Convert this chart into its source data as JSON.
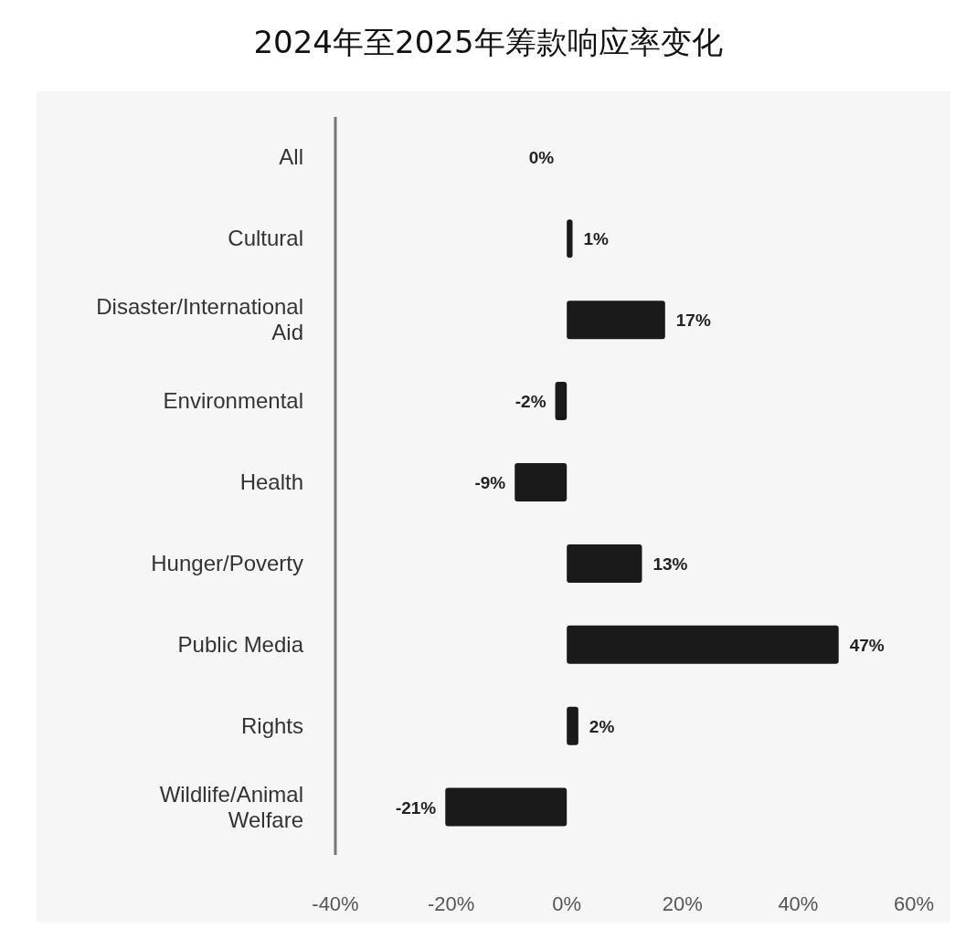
{
  "chart_data": {
    "type": "bar",
    "orientation": "horizontal",
    "title": "2024年至2025年筹款响应率变化",
    "categories": [
      "All",
      "Cultural",
      "Disaster/International Aid",
      "Environmental",
      "Health",
      "Hunger/Poverty",
      "Public Media",
      "Rights",
      "Wildlife/Animal Welfare"
    ],
    "values": [
      0,
      1,
      17,
      -2,
      -9,
      13,
      47,
      2,
      -21
    ],
    "value_labels": [
      "0%",
      "1%",
      "17%",
      "-2%",
      "-9%",
      "13%",
      "47%",
      "2%",
      "-21%"
    ],
    "color": "#1a1a1a",
    "xlim": [
      -40,
      60
    ],
    "xticks": [
      {
        "value": -40,
        "label": "-40%"
      },
      {
        "value": -20,
        "label": "-20%"
      },
      {
        "value": 0,
        "label": "0%"
      },
      {
        "value": 20,
        "label": "20%"
      },
      {
        "value": 40,
        "label": "40%"
      },
      {
        "value": 60,
        "label": "60%"
      }
    ],
    "grid": false
  }
}
